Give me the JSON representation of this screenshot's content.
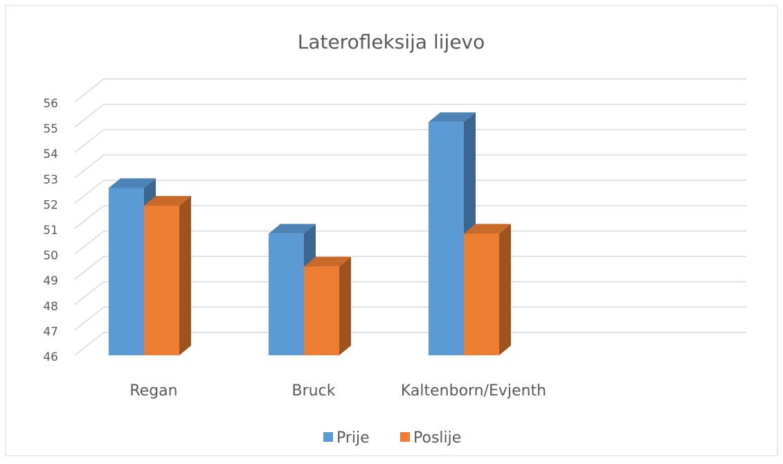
{
  "chart_data": {
    "type": "bar3d",
    "title": "Laterofleksija lijevo",
    "categories": [
      "Regan",
      "Bruck",
      "Kaltenborn/Evjenth"
    ],
    "series": [
      {
        "name": "Prije",
        "color": "#5b9bd5",
        "values": [
          52.6,
          50.8,
          55.2
        ]
      },
      {
        "name": "Poslije",
        "color": "#ed7d31",
        "values": [
          51.9,
          49.5,
          50.8
        ]
      }
    ],
    "ylim": [
      46,
      56
    ],
    "yticks": [
      46,
      47,
      48,
      49,
      50,
      51,
      52,
      53,
      54,
      55,
      56
    ],
    "grid": true,
    "legend": "bottom"
  }
}
